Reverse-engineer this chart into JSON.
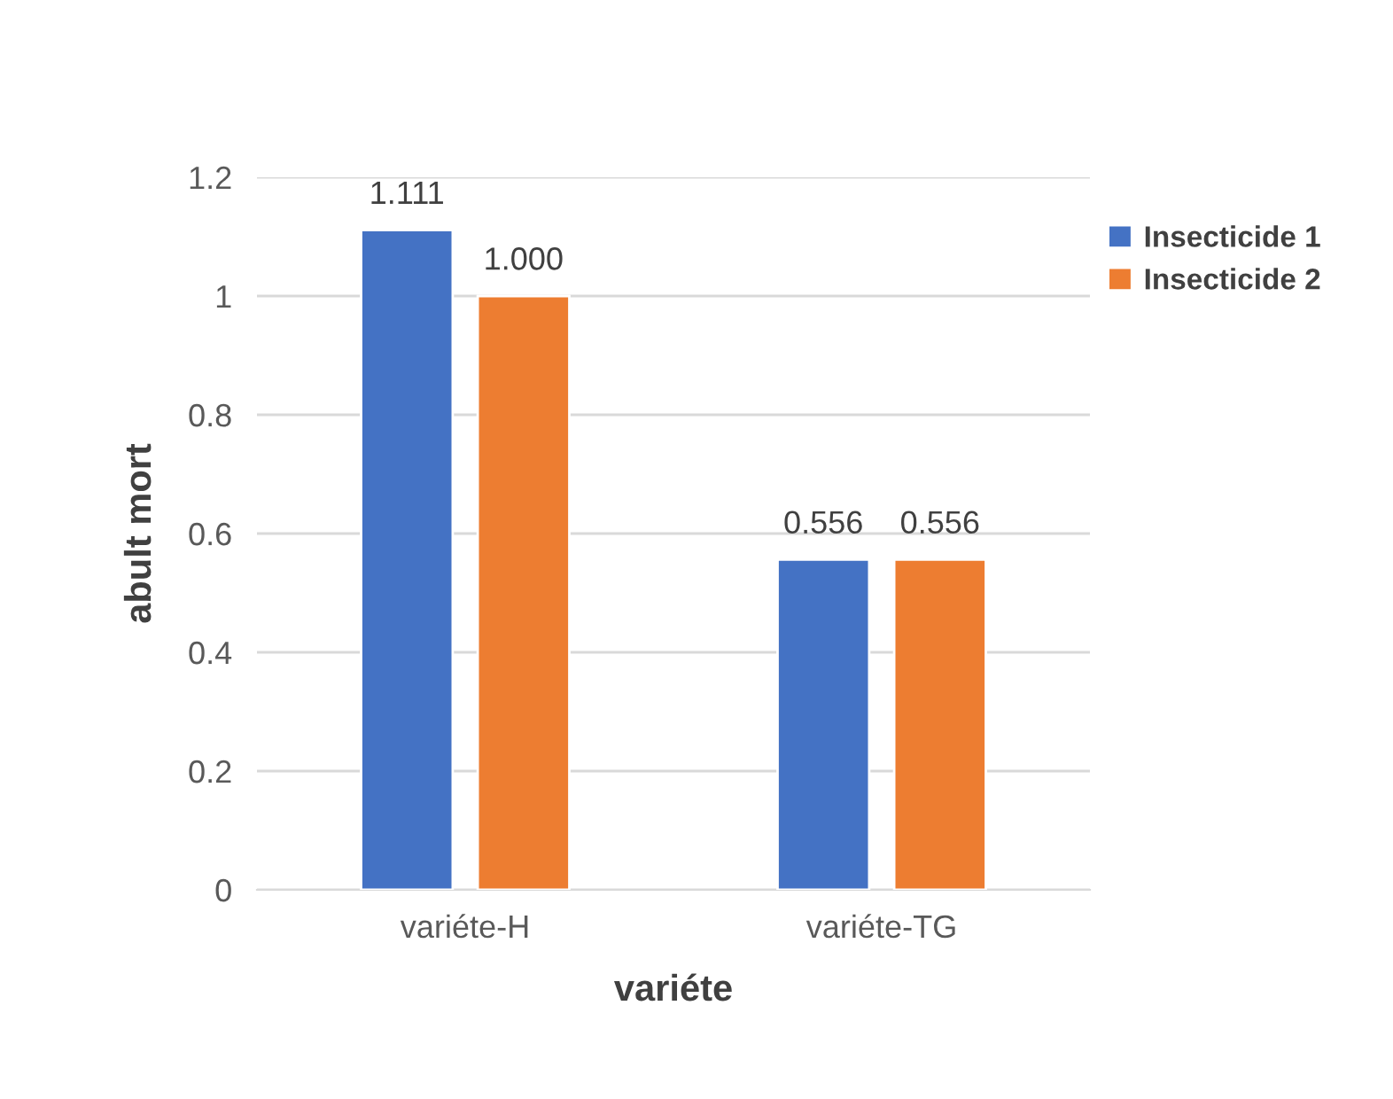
{
  "chart_data": {
    "type": "bar",
    "xlabel": "variéte",
    "ylabel": "abult mort",
    "categories": [
      "variéte-H",
      "variéte-TG"
    ],
    "series": [
      {
        "name": "Insecticide 1",
        "color": "#4472c4",
        "values": [
          1.111,
          0.556
        ],
        "value_labels": [
          "1.111",
          "0.556"
        ]
      },
      {
        "name": "Insecticide 2",
        "color": "#ed7d31",
        "values": [
          1.0,
          0.556
        ],
        "value_labels": [
          "1.000",
          "0.556"
        ]
      }
    ],
    "ylim": [
      0,
      1.2
    ],
    "yticks": [
      0,
      0.2,
      0.4,
      0.6,
      0.8,
      1,
      1.2
    ],
    "grid": "y",
    "legend": "right"
  }
}
